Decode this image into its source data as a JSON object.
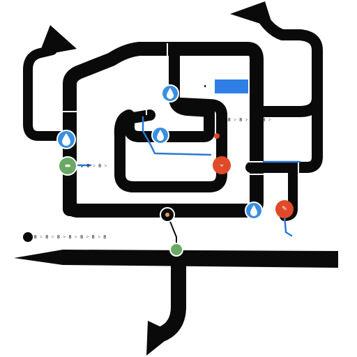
{
  "colors": {
    "road": "#0a0a0a",
    "lane": "#2a7ad6",
    "water_marker": "#3a8fe0",
    "food_marker": "#e04a28",
    "park_marker": "#6aa866",
    "highlight": "#2f7fe6"
  },
  "markers": {
    "water_top": {
      "icon": "water-drop-icon"
    },
    "water_mid": {
      "icon": "water-drop-icon"
    },
    "water_left": {
      "icon": "water-drop-icon"
    },
    "water_right": {
      "icon": "water-drop-icon"
    },
    "food_center": {
      "icon": "restaurant-icon"
    },
    "food_right": {
      "icon": "restaurant-icon"
    },
    "park_left": {
      "icon": "park-icon"
    },
    "park_bottom": {
      "icon": "park-icon"
    },
    "hub_bottom": {
      "icon": "transit-hub-icon"
    },
    "pin_small": {
      "icon": "pin-icon"
    }
  },
  "labels": {
    "park_left": "↙ 8 ˃ 8 ˃",
    "east_row": "• ˃ 8 ˃ 8 ˃ 8 ˃ 8 ˃",
    "bottom_row": "• ˃ 8 ˃ 8 ˃ 8 ˃ 8 ˃ 8 ˃ 8 ˃ 8",
    "north_tag": "ᴀ",
    "top_right_tag": "♦"
  }
}
